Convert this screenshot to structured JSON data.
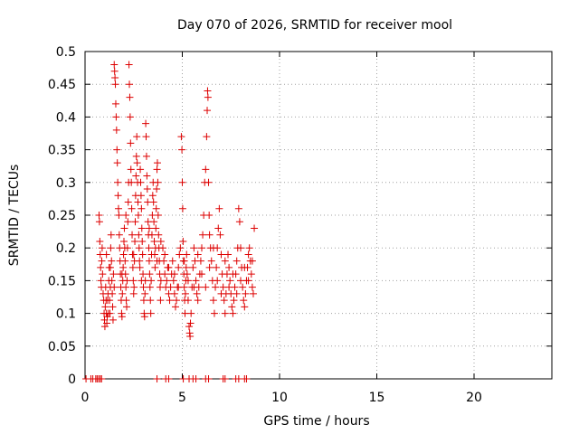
{
  "chart_data": {
    "type": "scatter",
    "title": "Day 070 of 2026, SRMTID for receiver mool",
    "xlabel": "GPS time / hours",
    "ylabel": "SRMTID / TECUs",
    "xlim": [
      0,
      24
    ],
    "ylim": [
      0,
      0.5
    ],
    "xticks": [
      0,
      5,
      10,
      15,
      20
    ],
    "xtick_labels": [
      "0",
      "5",
      "10",
      "15",
      "20"
    ],
    "yticks": [
      0,
      0.05,
      0.1,
      0.15,
      0.2,
      0.25,
      0.3,
      0.35,
      0.4,
      0.45,
      0.5
    ],
    "ytick_labels": [
      "0",
      "0.05",
      "0.1",
      "0.15",
      "0.2",
      "0.25",
      "0.3",
      "0.35",
      "0.4",
      "0.45",
      "0.5"
    ],
    "grid": true,
    "marker": "+",
    "color": "#dd0000",
    "series": [
      {
        "name": "SRMTID",
        "points": [
          [
            0.05,
            0
          ],
          [
            0.3,
            0
          ],
          [
            0.4,
            0
          ],
          [
            0.55,
            0
          ],
          [
            0.62,
            0
          ],
          [
            0.7,
            0
          ],
          [
            0.78,
            0
          ],
          [
            0.85,
            0
          ],
          [
            3.7,
            0
          ],
          [
            4.15,
            0
          ],
          [
            4.3,
            0
          ],
          [
            5.05,
            0
          ],
          [
            5.35,
            0
          ],
          [
            5.55,
            0
          ],
          [
            5.7,
            0
          ],
          [
            6.2,
            0
          ],
          [
            6.35,
            0
          ],
          [
            7.1,
            0
          ],
          [
            7.2,
            0
          ],
          [
            7.75,
            0
          ],
          [
            7.9,
            0
          ],
          [
            8.2,
            0
          ],
          [
            8.3,
            0
          ],
          [
            0.72,
            0.25
          ],
          [
            0.74,
            0.24
          ],
          [
            0.76,
            0.21
          ],
          [
            0.78,
            0.19
          ],
          [
            0.8,
            0.17
          ],
          [
            0.82,
            0.15
          ],
          [
            0.84,
            0.14
          ],
          [
            0.86,
            0.18
          ],
          [
            0.88,
            0.2
          ],
          [
            0.9,
            0.16
          ],
          [
            0.93,
            0.13
          ],
          [
            0.96,
            0.12
          ],
          [
            0.98,
            0.1
          ],
          [
            1.0,
            0.09
          ],
          [
            1.02,
            0.08
          ],
          [
            1.04,
            0.11
          ],
          [
            1.06,
            0.14
          ],
          [
            1.08,
            0.12
          ],
          [
            1.1,
            0.1
          ],
          [
            1.12,
            0.085
          ],
          [
            1.14,
            0.095
          ],
          [
            1.16,
            0.12
          ],
          [
            1.18,
            0.13
          ],
          [
            1.2,
            0.1
          ],
          [
            1.22,
            0.15
          ],
          [
            1.24,
            0.17
          ],
          [
            1.26,
            0.12
          ],
          [
            1.28,
            0.1
          ],
          [
            1.3,
            0.14
          ],
          [
            1.32,
            0.2
          ],
          [
            1.34,
            0.22
          ],
          [
            1.36,
            0.18
          ],
          [
            1.38,
            0.15
          ],
          [
            1.4,
            0.13
          ],
          [
            1.42,
            0.11
          ],
          [
            1.44,
            0.09
          ],
          [
            1.46,
            0.16
          ],
          [
            1.5,
            0.48
          ],
          [
            1.52,
            0.47
          ],
          [
            1.54,
            0.46
          ],
          [
            1.56,
            0.45
          ],
          [
            1.58,
            0.42
          ],
          [
            1.6,
            0.4
          ],
          [
            1.62,
            0.38
          ],
          [
            1.64,
            0.35
          ],
          [
            1.66,
            0.33
          ],
          [
            1.68,
            0.3
          ],
          [
            1.7,
            0.28
          ],
          [
            1.72,
            0.26
          ],
          [
            1.74,
            0.25
          ],
          [
            1.76,
            0.22
          ],
          [
            1.78,
            0.2
          ],
          [
            1.8,
            0.18
          ],
          [
            1.82,
            0.16
          ],
          [
            1.84,
            0.14
          ],
          [
            1.86,
            0.12
          ],
          [
            1.88,
            0.1
          ],
          [
            1.9,
            0.095
          ],
          [
            1.92,
            0.13
          ],
          [
            1.94,
            0.15
          ],
          [
            1.96,
            0.17
          ],
          [
            1.98,
            0.19
          ],
          [
            2.0,
            0.21
          ],
          [
            2.02,
            0.23
          ],
          [
            2.04,
            0.2
          ],
          [
            2.06,
            0.18
          ],
          [
            2.08,
            0.16
          ],
          [
            2.1,
            0.14
          ],
          [
            2.12,
            0.12
          ],
          [
            2.14,
            0.11
          ],
          [
            2.16,
            0.15
          ],
          [
            2.18,
            0.2
          ],
          [
            2.2,
            0.24
          ],
          [
            2.22,
            0.27
          ],
          [
            2.24,
            0.3
          ],
          [
            2.26,
            0.48
          ],
          [
            2.28,
            0.45
          ],
          [
            2.3,
            0.43
          ],
          [
            2.32,
            0.4
          ],
          [
            2.34,
            0.36
          ],
          [
            2.36,
            0.32
          ],
          [
            2.38,
            0.3
          ],
          [
            2.4,
            0.26
          ],
          [
            2.42,
            0.22
          ],
          [
            2.44,
            0.19
          ],
          [
            2.46,
            0.17
          ],
          [
            2.48,
            0.15
          ],
          [
            2.5,
            0.13
          ],
          [
            2.52,
            0.14
          ],
          [
            2.54,
            0.18
          ],
          [
            2.56,
            0.21
          ],
          [
            2.58,
            0.24
          ],
          [
            2.6,
            0.28
          ],
          [
            2.62,
            0.31
          ],
          [
            2.64,
            0.34
          ],
          [
            2.66,
            0.37
          ],
          [
            2.68,
            0.33
          ],
          [
            2.7,
            0.3
          ],
          [
            2.72,
            0.27
          ],
          [
            2.74,
            0.25
          ],
          [
            2.76,
            0.22
          ],
          [
            2.78,
            0.2
          ],
          [
            2.8,
            0.18
          ],
          [
            2.82,
            0.17
          ],
          [
            2.84,
            0.32
          ],
          [
            2.86,
            0.3
          ],
          [
            2.88,
            0.28
          ],
          [
            2.9,
            0.26
          ],
          [
            2.92,
            0.23
          ],
          [
            2.94,
            0.21
          ],
          [
            2.96,
            0.19
          ],
          [
            2.98,
            0.16
          ],
          [
            3.0,
            0.14
          ],
          [
            3.02,
            0.12
          ],
          [
            3.04,
            0.1
          ],
          [
            3.06,
            0.095
          ],
          [
            3.08,
            0.13
          ],
          [
            3.1,
            0.15
          ],
          [
            3.12,
            0.39
          ],
          [
            3.14,
            0.37
          ],
          [
            3.16,
            0.34
          ],
          [
            3.18,
            0.31
          ],
          [
            3.2,
            0.29
          ],
          [
            3.22,
            0.27
          ],
          [
            3.24,
            0.24
          ],
          [
            3.26,
            0.22
          ],
          [
            3.28,
            0.2
          ],
          [
            3.3,
            0.18
          ],
          [
            3.32,
            0.16
          ],
          [
            3.34,
            0.14
          ],
          [
            3.36,
            0.12
          ],
          [
            3.38,
            0.1
          ],
          [
            3.4,
            0.15
          ],
          [
            3.42,
            0.19
          ],
          [
            3.44,
            0.22
          ],
          [
            3.46,
            0.25
          ],
          [
            3.48,
            0.28
          ],
          [
            3.5,
            0.3
          ],
          [
            3.52,
            0.27
          ],
          [
            3.54,
            0.24
          ],
          [
            3.56,
            0.21
          ],
          [
            3.58,
            0.19
          ],
          [
            3.6,
            0.17
          ],
          [
            3.62,
            0.2
          ],
          [
            3.64,
            0.23
          ],
          [
            3.66,
            0.26
          ],
          [
            3.68,
            0.29
          ],
          [
            3.7,
            0.32
          ],
          [
            3.72,
            0.33
          ],
          [
            3.74,
            0.3
          ],
          [
            3.76,
            0.25
          ],
          [
            3.78,
            0.22
          ],
          [
            3.8,
            0.2
          ],
          [
            3.82,
            0.18
          ],
          [
            3.84,
            0.16
          ],
          [
            3.86,
            0.14
          ],
          [
            3.88,
            0.12
          ],
          [
            3.9,
            0.15
          ],
          [
            4.0,
            0.2
          ],
          [
            4.05,
            0.18
          ],
          [
            4.1,
            0.16
          ],
          [
            4.15,
            0.14
          ],
          [
            4.2,
            0.15
          ],
          [
            4.25,
            0.17
          ],
          [
            4.3,
            0.13
          ],
          [
            4.35,
            0.12
          ],
          [
            4.4,
            0.14
          ],
          [
            4.45,
            0.16
          ],
          [
            4.5,
            0.18
          ],
          [
            4.55,
            0.15
          ],
          [
            4.6,
            0.13
          ],
          [
            4.65,
            0.11
          ],
          [
            4.7,
            0.12
          ],
          [
            4.75,
            0.14
          ],
          [
            4.8,
            0.17
          ],
          [
            4.85,
            0.19
          ],
          [
            4.9,
            0.2
          ],
          [
            4.95,
            0.37
          ],
          [
            4.98,
            0.35
          ],
          [
            5.0,
            0.3
          ],
          [
            5.02,
            0.26
          ],
          [
            5.04,
            0.21
          ],
          [
            5.06,
            0.18
          ],
          [
            5.08,
            0.16
          ],
          [
            5.1,
            0.14
          ],
          [
            5.12,
            0.12
          ],
          [
            5.14,
            0.1
          ],
          [
            5.16,
            0.13
          ],
          [
            5.18,
            0.15
          ],
          [
            5.2,
            0.17
          ],
          [
            5.22,
            0.19
          ],
          [
            5.25,
            0.16
          ],
          [
            5.3,
            0.12
          ],
          [
            5.35,
            0.08
          ],
          [
            5.38,
            0.07
          ],
          [
            5.4,
            0.065
          ],
          [
            5.42,
            0.085
          ],
          [
            5.45,
            0.1
          ],
          [
            5.5,
            0.14
          ],
          [
            5.55,
            0.17
          ],
          [
            5.6,
            0.2
          ],
          [
            5.65,
            0.18
          ],
          [
            5.7,
            0.15
          ],
          [
            5.75,
            0.13
          ],
          [
            5.8,
            0.12
          ],
          [
            5.85,
            0.14
          ],
          [
            5.9,
            0.16
          ],
          [
            5.95,
            0.18
          ],
          [
            6.0,
            0.2
          ],
          [
            6.05,
            0.22
          ],
          [
            6.1,
            0.25
          ],
          [
            6.15,
            0.3
          ],
          [
            6.2,
            0.32
          ],
          [
            6.25,
            0.37
          ],
          [
            6.28,
            0.41
          ],
          [
            6.3,
            0.44
          ],
          [
            6.32,
            0.43
          ],
          [
            6.35,
            0.3
          ],
          [
            6.38,
            0.25
          ],
          [
            6.4,
            0.22
          ],
          [
            6.45,
            0.2
          ],
          [
            6.5,
            0.18
          ],
          [
            6.55,
            0.15
          ],
          [
            6.6,
            0.12
          ],
          [
            6.65,
            0.1
          ],
          [
            6.7,
            0.14
          ],
          [
            6.75,
            0.17
          ],
          [
            6.8,
            0.2
          ],
          [
            6.85,
            0.23
          ],
          [
            6.9,
            0.26
          ],
          [
            6.95,
            0.22
          ],
          [
            7.0,
            0.19
          ],
          [
            7.05,
            0.16
          ],
          [
            7.1,
            0.14
          ],
          [
            7.15,
            0.12
          ],
          [
            7.2,
            0.1
          ],
          [
            7.25,
            0.13
          ],
          [
            7.3,
            0.16
          ],
          [
            7.35,
            0.19
          ],
          [
            7.4,
            0.17
          ],
          [
            7.45,
            0.15
          ],
          [
            7.5,
            0.13
          ],
          [
            7.55,
            0.11
          ],
          [
            7.6,
            0.1
          ],
          [
            7.65,
            0.12
          ],
          [
            7.7,
            0.14
          ],
          [
            7.75,
            0.16
          ],
          [
            7.8,
            0.18
          ],
          [
            7.85,
            0.2
          ],
          [
            7.9,
            0.26
          ],
          [
            7.95,
            0.24
          ],
          [
            8.0,
            0.2
          ],
          [
            8.05,
            0.17
          ],
          [
            8.1,
            0.14
          ],
          [
            8.15,
            0.12
          ],
          [
            8.2,
            0.11
          ],
          [
            8.25,
            0.13
          ],
          [
            8.3,
            0.15
          ],
          [
            8.35,
            0.17
          ],
          [
            8.4,
            0.19
          ],
          [
            8.45,
            0.2
          ],
          [
            8.5,
            0.18
          ],
          [
            8.55,
            0.16
          ],
          [
            8.6,
            0.14
          ],
          [
            8.65,
            0.13
          ],
          [
            8.7,
            0.23
          ],
          [
            1.1,
            0.19
          ],
          [
            1.3,
            0.17
          ],
          [
            1.5,
            0.14
          ],
          [
            1.9,
            0.16
          ],
          [
            2.1,
            0.25
          ],
          [
            2.5,
            0.19
          ],
          [
            2.9,
            0.15
          ],
          [
            3.3,
            0.23
          ],
          [
            3.7,
            0.18
          ],
          [
            3.9,
            0.21
          ],
          [
            4.1,
            0.19
          ],
          [
            4.3,
            0.17
          ],
          [
            4.6,
            0.16
          ],
          [
            4.8,
            0.14
          ],
          [
            5.1,
            0.18
          ],
          [
            5.3,
            0.15
          ],
          [
            5.6,
            0.14
          ],
          [
            5.8,
            0.19
          ],
          [
            6.0,
            0.16
          ],
          [
            6.2,
            0.14
          ],
          [
            6.4,
            0.17
          ],
          [
            6.6,
            0.2
          ],
          [
            6.8,
            0.15
          ],
          [
            7.0,
            0.13
          ],
          [
            7.2,
            0.18
          ],
          [
            7.4,
            0.14
          ],
          [
            7.6,
            0.16
          ],
          [
            7.8,
            0.13
          ],
          [
            8.0,
            0.15
          ],
          [
            8.2,
            0.17
          ],
          [
            8.4,
            0.15
          ],
          [
            8.6,
            0.18
          ]
        ]
      }
    ]
  }
}
